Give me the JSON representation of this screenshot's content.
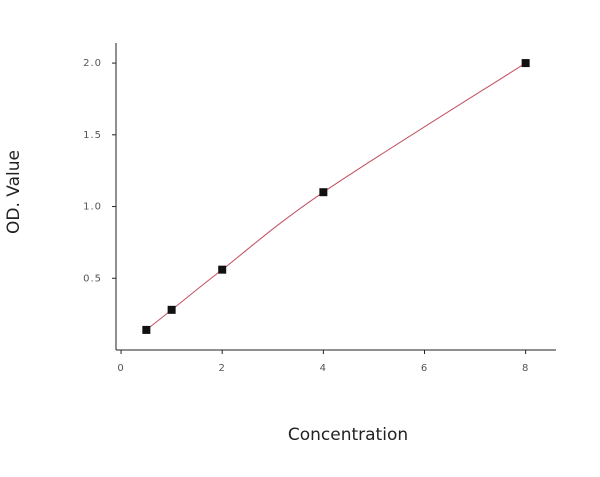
{
  "chart_data": {
    "type": "scatter",
    "x_label": "Concentration",
    "y_label": "OD. Value",
    "x": [
      0.5,
      1,
      2,
      4,
      8
    ],
    "values": [
      0.14,
      0.28,
      0.56,
      1.1,
      2.0
    ],
    "color": "#111111",
    "line_color": "#c05060",
    "fit_line": true,
    "xlim": [
      -0.1,
      8.6
    ],
    "ylim": [
      0,
      2.14
    ],
    "xticks": [
      0,
      2,
      4,
      6,
      8
    ],
    "yticks": [
      {
        "value": 0.5,
        "label": "0.5"
      },
      {
        "value": 1,
        "label": "1.0"
      },
      {
        "value": 1.5,
        "label": "1.5"
      },
      {
        "value": 2,
        "label": "2.0"
      }
    ],
    "grid": false
  }
}
